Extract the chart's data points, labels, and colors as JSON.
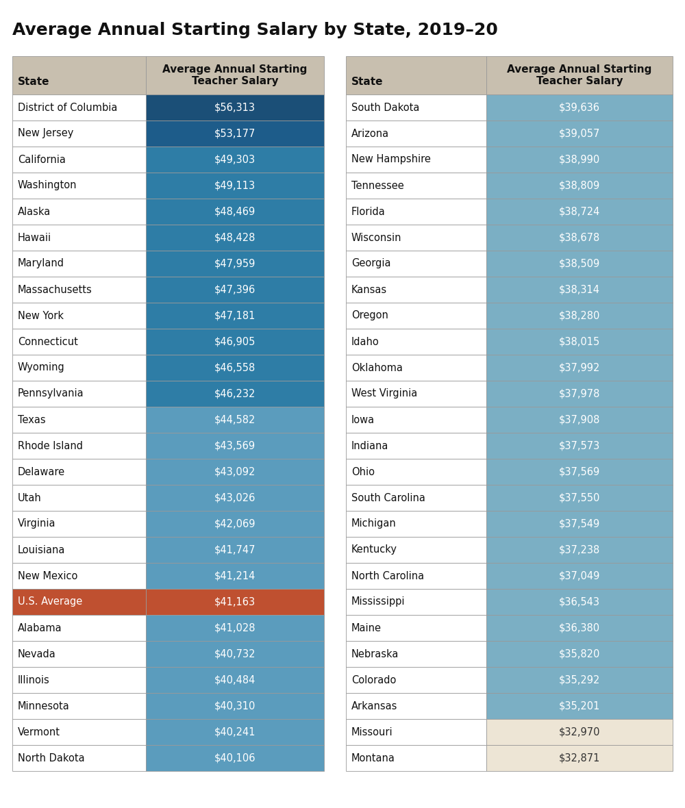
{
  "title": "Average Annual Starting Salary by State, 2019–20",
  "header_bg": "#c8bfaf",
  "header_text": "Average Annual Starting\nTeacher Salary",
  "left_table": [
    {
      "state": "District of Columbia",
      "salary": "$56,313",
      "color": "#1b4f77"
    },
    {
      "state": "New Jersey",
      "salary": "$53,177",
      "color": "#1d5c8a"
    },
    {
      "state": "California",
      "salary": "$49,303",
      "color": "#2e7da6"
    },
    {
      "state": "Washington",
      "salary": "$49,113",
      "color": "#2e7da6"
    },
    {
      "state": "Alaska",
      "salary": "$48,469",
      "color": "#2e7da6"
    },
    {
      "state": "Hawaii",
      "salary": "$48,428",
      "color": "#2e7da6"
    },
    {
      "state": "Maryland",
      "salary": "$47,959",
      "color": "#2e7da6"
    },
    {
      "state": "Massachusetts",
      "salary": "$47,396",
      "color": "#2e7da6"
    },
    {
      "state": "New York",
      "salary": "$47,181",
      "color": "#2e7da6"
    },
    {
      "state": "Connecticut",
      "salary": "$46,905",
      "color": "#2e7da6"
    },
    {
      "state": "Wyoming",
      "salary": "$46,558",
      "color": "#2e7da6"
    },
    {
      "state": "Pennsylvania",
      "salary": "$46,232",
      "color": "#2e7da6"
    },
    {
      "state": "Texas",
      "salary": "$44,582",
      "color": "#5b9cbd"
    },
    {
      "state": "Rhode Island",
      "salary": "$43,569",
      "color": "#5b9cbd"
    },
    {
      "state": "Delaware",
      "salary": "$43,092",
      "color": "#5b9cbd"
    },
    {
      "state": "Utah",
      "salary": "$43,026",
      "color": "#5b9cbd"
    },
    {
      "state": "Virginia",
      "salary": "$42,069",
      "color": "#5b9cbd"
    },
    {
      "state": "Louisiana",
      "salary": "$41,747",
      "color": "#5b9cbd"
    },
    {
      "state": "New Mexico",
      "salary": "$41,214",
      "color": "#5b9cbd"
    },
    {
      "state": "U.S. Average",
      "salary": "$41,163",
      "color": "#bf5030"
    },
    {
      "state": "Alabama",
      "salary": "$41,028",
      "color": "#5b9cbd"
    },
    {
      "state": "Nevada",
      "salary": "$40,732",
      "color": "#5b9cbd"
    },
    {
      "state": "Illinois",
      "salary": "$40,484",
      "color": "#5b9cbd"
    },
    {
      "state": "Minnesota",
      "salary": "$40,310",
      "color": "#5b9cbd"
    },
    {
      "state": "Vermont",
      "salary": "$40,241",
      "color": "#5b9cbd"
    },
    {
      "state": "North Dakota",
      "salary": "$40,106",
      "color": "#5b9cbd"
    }
  ],
  "right_table": [
    {
      "state": "South Dakota",
      "salary": "$39,636",
      "color": "#7bafc4"
    },
    {
      "state": "Arizona",
      "salary": "$39,057",
      "color": "#7bafc4"
    },
    {
      "state": "New Hampshire",
      "salary": "$38,990",
      "color": "#7bafc4"
    },
    {
      "state": "Tennessee",
      "salary": "$38,809",
      "color": "#7bafc4"
    },
    {
      "state": "Florida",
      "salary": "$38,724",
      "color": "#7bafc4"
    },
    {
      "state": "Wisconsin",
      "salary": "$38,678",
      "color": "#7bafc4"
    },
    {
      "state": "Georgia",
      "salary": "$38,509",
      "color": "#7bafc4"
    },
    {
      "state": "Kansas",
      "salary": "$38,314",
      "color": "#7bafc4"
    },
    {
      "state": "Oregon",
      "salary": "$38,280",
      "color": "#7bafc4"
    },
    {
      "state": "Idaho",
      "salary": "$38,015",
      "color": "#7bafc4"
    },
    {
      "state": "Oklahoma",
      "salary": "$37,992",
      "color": "#7bafc4"
    },
    {
      "state": "West Virginia",
      "salary": "$37,978",
      "color": "#7bafc4"
    },
    {
      "state": "Iowa",
      "salary": "$37,908",
      "color": "#7bafc4"
    },
    {
      "state": "Indiana",
      "salary": "$37,573",
      "color": "#7bafc4"
    },
    {
      "state": "Ohio",
      "salary": "$37,569",
      "color": "#7bafc4"
    },
    {
      "state": "South Carolina",
      "salary": "$37,550",
      "color": "#7bafc4"
    },
    {
      "state": "Michigan",
      "salary": "$37,549",
      "color": "#7bafc4"
    },
    {
      "state": "Kentucky",
      "salary": "$37,238",
      "color": "#7bafc4"
    },
    {
      "state": "North Carolina",
      "salary": "$37,049",
      "color": "#7bafc4"
    },
    {
      "state": "Mississippi",
      "salary": "$36,543",
      "color": "#7bafc4"
    },
    {
      "state": "Maine",
      "salary": "$36,380",
      "color": "#7bafc4"
    },
    {
      "state": "Nebraska",
      "salary": "$35,820",
      "color": "#7bafc4"
    },
    {
      "state": "Colorado",
      "salary": "$35,292",
      "color": "#7bafc4"
    },
    {
      "state": "Arkansas",
      "salary": "$35,201",
      "color": "#7bafc4"
    },
    {
      "state": "Missouri",
      "salary": "$32,970",
      "color": "#ede5d5"
    },
    {
      "state": "Montana",
      "salary": "$32,871",
      "color": "#ede5d5"
    }
  ],
  "bg_color": "#ffffff",
  "border_color": "#999999",
  "title_fontsize": 18,
  "header_fontsize": 11,
  "row_fontsize": 10.5
}
